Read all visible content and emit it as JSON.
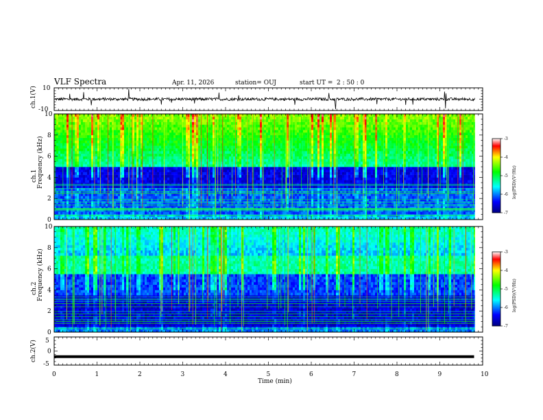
{
  "header": {
    "title": "VLF Spectra",
    "date": "Apr. 11, 2026",
    "station": "station= OUJ",
    "start_label": "start  UT =",
    "start_time": "2 : 50 : 0"
  },
  "chart_data": [
    {
      "type": "line",
      "panel": "ch1-waveform",
      "ylabel": "ch.1(V)",
      "ylim": [
        -10,
        10
      ],
      "yticks": [
        "10",
        "-10"
      ],
      "x": [
        0,
        0.5,
        1,
        1.5,
        2,
        2.5,
        3,
        3.5,
        4,
        4.5,
        5,
        5.5,
        6,
        6.5,
        7,
        7.5,
        8,
        8.5,
        9,
        9.5,
        9.8
      ],
      "y": [
        0,
        0.3,
        -0.4,
        0.5,
        -0.3,
        0.2,
        -0.5,
        0.4,
        0.1,
        -0.2,
        0.3,
        -0.4,
        0.2,
        0.5,
        -0.3,
        0.1,
        0.4,
        -0.2,
        0.3,
        -0.1,
        0.2
      ],
      "note_level": "approximately 0 V with impulsive spikes"
    },
    {
      "type": "heatmap",
      "panel": "ch1-spectrogram",
      "ylabel": "ch.1\nFrequency (kHz)",
      "ylim": [
        0,
        10
      ],
      "yticks": [
        "0",
        "2",
        "4",
        "6",
        "8",
        "10"
      ],
      "colorbar": {
        "label": "log(PSD)(V²/Hz)",
        "range": [
          -7,
          -3
        ],
        "ticks": [
          "-3",
          "-4",
          "-5",
          "-6",
          "-7"
        ]
      }
    },
    {
      "type": "heatmap",
      "panel": "ch2-spectrogram",
      "ylabel": "ch.2\nFrequency (kHz)",
      "ylim": [
        0,
        10
      ],
      "yticks": [
        "0",
        "2",
        "4",
        "6",
        "8",
        "10"
      ],
      "colorbar": {
        "label": "log(PSD)(V²/Hz)",
        "range": [
          -7,
          -3
        ],
        "ticks": [
          "-3",
          "-4",
          "-5",
          "-6",
          "-7"
        ]
      }
    },
    {
      "type": "line",
      "panel": "ch2-waveform",
      "ylabel": "ch.2(V)",
      "ylim": [
        -5,
        5
      ],
      "yticks": [
        "5",
        "0",
        "-5"
      ],
      "x": [
        0,
        9.8
      ],
      "y": [
        -2,
        -2
      ]
    }
  ],
  "xaxis": {
    "label": "Time (min)",
    "range": [
      0,
      10
    ],
    "ticks": [
      "0",
      "1",
      "2",
      "3",
      "4",
      "5",
      "6",
      "7",
      "8",
      "9",
      "10"
    ]
  },
  "colors": {
    "background_low": "#00007f",
    "mid": "#00ffff",
    "high": "#ff0000",
    "axis": "#000000"
  }
}
